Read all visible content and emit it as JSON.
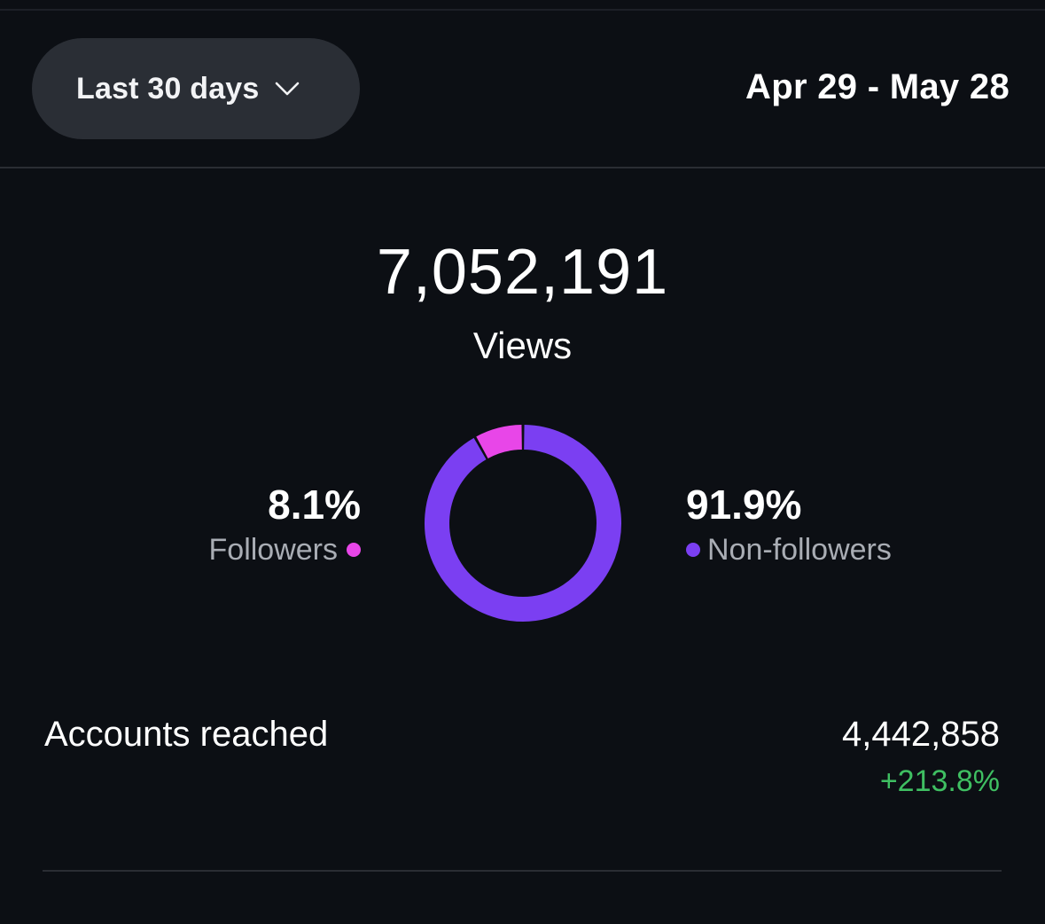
{
  "header": {
    "range_selector_label": "Last 30 days",
    "date_range": "Apr 29 - May 28"
  },
  "summary": {
    "total_views": "7,052,191",
    "views_label": "Views"
  },
  "breakdown": {
    "followers": {
      "percent_label": "8.1%",
      "label": "Followers",
      "value": 8.1,
      "color": "#e846e8"
    },
    "non_followers": {
      "percent_label": "91.9%",
      "label": "Non-followers",
      "value": 91.9,
      "color": "#7b3ff2"
    }
  },
  "accounts_reached": {
    "label": "Accounts reached",
    "value": "4,442,858",
    "change": "+213.8%",
    "change_color": "#3fbf62"
  },
  "icons": {
    "range_dropdown": "chevron-down-icon",
    "followers_legend": "legend-dot-icon",
    "non_followers_legend": "legend-dot-icon"
  }
}
